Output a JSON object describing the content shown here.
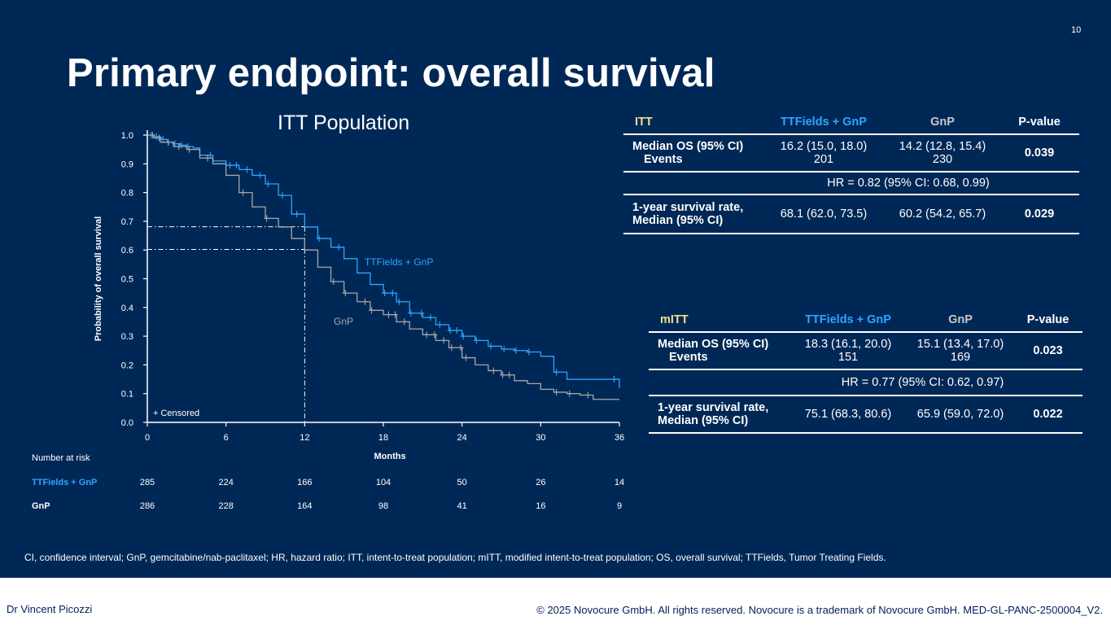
{
  "page": {
    "number": "10",
    "title": "Primary endpoint: overall survival",
    "footnote": "CI, confidence interval; GnP, gemcitabine/nab-paclitaxel; HR, hazard ratio; ITT, intent-to-treat population; mITT, modified intent-to-treat population; OS, overall survival; TTFields, Tumor Treating Fields.",
    "author": "Dr Vincent Picozzi",
    "copyright": "© 2025 Novocure GmbH. All rights reserved. Novocure is a trademark of Novocure GmbH. MED-GL-PANC-2500004_V2."
  },
  "colors": {
    "background": "#002856",
    "ttf": "#2fa4ff",
    "gnp": "#a6a6a6",
    "header_label": "#f3e087"
  },
  "chart_data": {
    "type": "line",
    "title": "ITT Population",
    "xlabel": "Months",
    "ylabel": "Probability of overall survival",
    "xlim": [
      0,
      36
    ],
    "ylim": [
      0,
      1
    ],
    "xticks": [
      0,
      6,
      12,
      18,
      24,
      30,
      36
    ],
    "yticks": [
      0.0,
      0.1,
      0.2,
      0.3,
      0.4,
      0.5,
      0.6,
      0.7,
      0.8,
      0.9,
      1.0
    ],
    "ytick_labels": [
      "0.0",
      "0.1",
      "0.2",
      "0.3",
      "0.4",
      "0.5",
      "0.6",
      "0.7",
      "0.8",
      "0.9",
      "1.0"
    ],
    "censored_legend": "+ Censored",
    "series": [
      {
        "name": "TTFields + GnP",
        "label": "TTFields + GnP",
        "x": [
          0,
          0.5,
          1,
          1.5,
          2,
          2.5,
          3,
          3.5,
          4,
          5,
          6,
          7,
          8,
          9,
          10,
          11,
          12,
          13,
          14,
          15,
          16,
          17,
          18,
          19,
          20,
          21,
          22,
          23,
          24,
          25,
          26,
          27,
          28,
          29,
          30,
          31,
          32,
          33,
          34,
          35,
          36
        ],
        "y": [
          1.0,
          0.995,
          0.985,
          0.975,
          0.97,
          0.965,
          0.96,
          0.955,
          0.93,
          0.91,
          0.895,
          0.88,
          0.86,
          0.83,
          0.79,
          0.725,
          0.68,
          0.64,
          0.61,
          0.57,
          0.52,
          0.48,
          0.45,
          0.42,
          0.38,
          0.365,
          0.34,
          0.32,
          0.3,
          0.285,
          0.265,
          0.255,
          0.25,
          0.245,
          0.23,
          0.175,
          0.15,
          0.15,
          0.15,
          0.15,
          0.12
        ],
        "censored_x": [
          0.3,
          0.7,
          1.2,
          1.6,
          2.1,
          2.6,
          3.1,
          4.8,
          6.3,
          6.8,
          7.6,
          8.6,
          9.2,
          10.3,
          11.4,
          13.1,
          14.6,
          18.1,
          18.7,
          19.2,
          20.1,
          20.9,
          21.6,
          22.3,
          23.1,
          23.6,
          24.1,
          25.1,
          26.2,
          27.2,
          28.1,
          29.1,
          31.2,
          35.6
        ]
      },
      {
        "name": "GnP",
        "label": "GnP",
        "x": [
          0,
          0.5,
          1,
          2,
          3,
          4,
          5,
          6,
          7,
          8,
          9,
          10,
          11,
          12,
          13,
          14,
          15,
          16,
          17,
          18,
          19,
          20,
          21,
          22,
          23,
          24,
          25,
          26,
          27,
          28,
          29,
          30,
          31,
          32,
          33,
          34,
          35,
          36
        ],
        "y": [
          1.0,
          0.99,
          0.975,
          0.96,
          0.95,
          0.92,
          0.9,
          0.86,
          0.8,
          0.75,
          0.71,
          0.68,
          0.64,
          0.6,
          0.54,
          0.49,
          0.45,
          0.42,
          0.39,
          0.375,
          0.35,
          0.325,
          0.305,
          0.285,
          0.26,
          0.225,
          0.2,
          0.18,
          0.165,
          0.145,
          0.135,
          0.115,
          0.105,
          0.1,
          0.095,
          0.08,
          0.08,
          0.08
        ],
        "censored_x": [
          0.4,
          0.9,
          1.6,
          2.4,
          3.2,
          4.6,
          7.3,
          9.1,
          14.2,
          15.1,
          16.6,
          17.1,
          18.4,
          18.9,
          19.6,
          21.3,
          21.9,
          22.6,
          23.2,
          23.9,
          24.3,
          26.4,
          27.1,
          27.6,
          31.2,
          32.2,
          33.6
        ]
      }
    ],
    "median_guides": [
      {
        "label": "1-year TTFields + GnP",
        "x": 12,
        "y": 0.681
      },
      {
        "label": "1-year GnP",
        "x": 12,
        "y": 0.602
      }
    ]
  },
  "risk_table": {
    "heading": "Number at risk",
    "timepoints": [
      0,
      6,
      12,
      18,
      24,
      30,
      36
    ],
    "rows": [
      {
        "label": "TTFields + GnP",
        "values": [
          "285",
          "224",
          "166",
          "104",
          "50",
          "26",
          "14"
        ]
      },
      {
        "label": "GnP",
        "values": [
          "286",
          "228",
          "164",
          "98",
          "41",
          "16",
          "9"
        ]
      }
    ]
  },
  "itt_table": {
    "headers": [
      "ITT",
      "TTFields + GnP",
      "GnP",
      "P-value"
    ],
    "median_os_label": "Median OS (95% CI)",
    "events_label": "Events",
    "ttf_os": "16.2 (15.0, 18.0)",
    "ttf_events": "201",
    "gnp_os": "14.2 (12.8, 15.4)",
    "gnp_events": "230",
    "os_p": "0.039",
    "hr": "HR = 0.82 (95% CI: 0.68, 0.99)",
    "yr1_label_1": "1-year survival rate,",
    "yr1_label_2": "Median (95% CI)",
    "ttf_yr1": "68.1 (62.0, 73.5)",
    "gnp_yr1": "60.2 (54.2, 65.7)",
    "yr1_p": "0.029"
  },
  "mitt_table": {
    "headers": [
      "mITT",
      "TTFields + GnP",
      "GnP",
      "P-value"
    ],
    "median_os_label": "Median OS (95% CI)",
    "events_label": "Events",
    "ttf_os": "18.3 (16.1, 20.0)",
    "ttf_events": "151",
    "gnp_os": "15.1 (13.4, 17.0)",
    "gnp_events": "169",
    "os_p": "0.023",
    "hr": "HR = 0.77 (95% CI: 0.62, 0.97)",
    "yr1_label_1": "1-year survival rate,",
    "yr1_label_2": "Median (95% CI)",
    "ttf_yr1": "75.1 (68.3, 80.6)",
    "gnp_yr1": "65.9 (59.0, 72.0)",
    "yr1_p": "0.022"
  }
}
